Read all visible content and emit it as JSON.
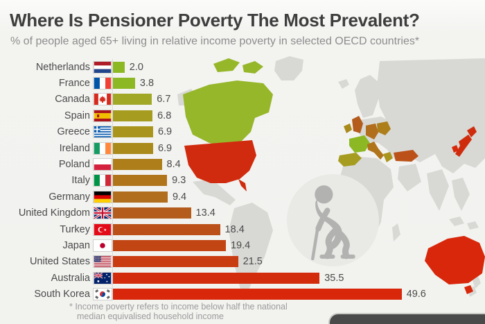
{
  "header": {
    "title": "Where Is Pensioner Poverty The Most Prevalent?",
    "subtitle": "% of people aged 65+ living in relative income poverty in selected OECD countries*"
  },
  "chart_data": {
    "type": "bar",
    "orientation": "horizontal",
    "unit": "percent",
    "xlim": [
      0,
      52
    ],
    "categories": [
      "Netherlands",
      "France",
      "Canada",
      "Spain",
      "Greece",
      "Ireland",
      "Poland",
      "Italy",
      "Germany",
      "United Kingdom",
      "Turkey",
      "Japan",
      "United States",
      "Australia",
      "South Korea"
    ],
    "values": [
      2.0,
      3.8,
      6.7,
      6.8,
      6.9,
      6.9,
      8.4,
      9.3,
      9.4,
      13.4,
      18.4,
      19.4,
      21.5,
      35.5,
      49.6
    ],
    "value_labels": [
      "2.0",
      "3.8",
      "6.7",
      "6.8",
      "6.9",
      "6.9",
      "8.4",
      "9.3",
      "9.4",
      "13.4",
      "18.4",
      "19.4",
      "21.5",
      "35.5",
      "49.6"
    ],
    "bar_colors": [
      "#8cb823",
      "#8cb823",
      "#a0a826",
      "#a59c20",
      "#a9951d",
      "#a98a1b",
      "#ad7e19",
      "#b0741b",
      "#b16e1d",
      "#b45c1c",
      "#bb5118",
      "#c14614",
      "#c93b11",
      "#d32c0d",
      "#d8270a"
    ],
    "flag_icons": [
      "flag-nl",
      "flag-fr",
      "flag-ca",
      "flag-es",
      "flag-gr",
      "flag-ie",
      "flag-pl",
      "flag-it",
      "flag-de",
      "flag-gb",
      "flag-tr",
      "flag-jp",
      "flag-us",
      "flag-au",
      "flag-kr"
    ],
    "legend": "none",
    "grid": "off",
    "footnote": "* Income poverty refers to income below half the national median equivalised household income"
  },
  "map": {
    "land_color": "#d8d8d5",
    "colors": {
      "canada": "#96b72a",
      "united_states": "#d02b0e",
      "ireland": "#a98a1b",
      "uk": "#b45c1c",
      "france": "#8cb823",
      "spain": "#a59c20",
      "germany": "#b16e1d",
      "poland": "#ad7e19",
      "italy": "#b0741b",
      "greece": "#a9951d",
      "turkey": "#bb5118",
      "japan": "#cf2c0e",
      "south_korea": "#d8270a",
      "australia": "#d8270a"
    }
  },
  "figure": {
    "icon": "elderly-person-with-cane-icon",
    "circle_color": "#e9e9e6",
    "silhouette_color": "#b2b2b0"
  },
  "colors": {
    "background": "#f2f2ef",
    "title": "#3e3e3e",
    "subtitle": "#8d8d8d",
    "label": "#4a4a4a",
    "footnote": "#9b9b9b",
    "footer_bar": "#4a4a4a"
  }
}
